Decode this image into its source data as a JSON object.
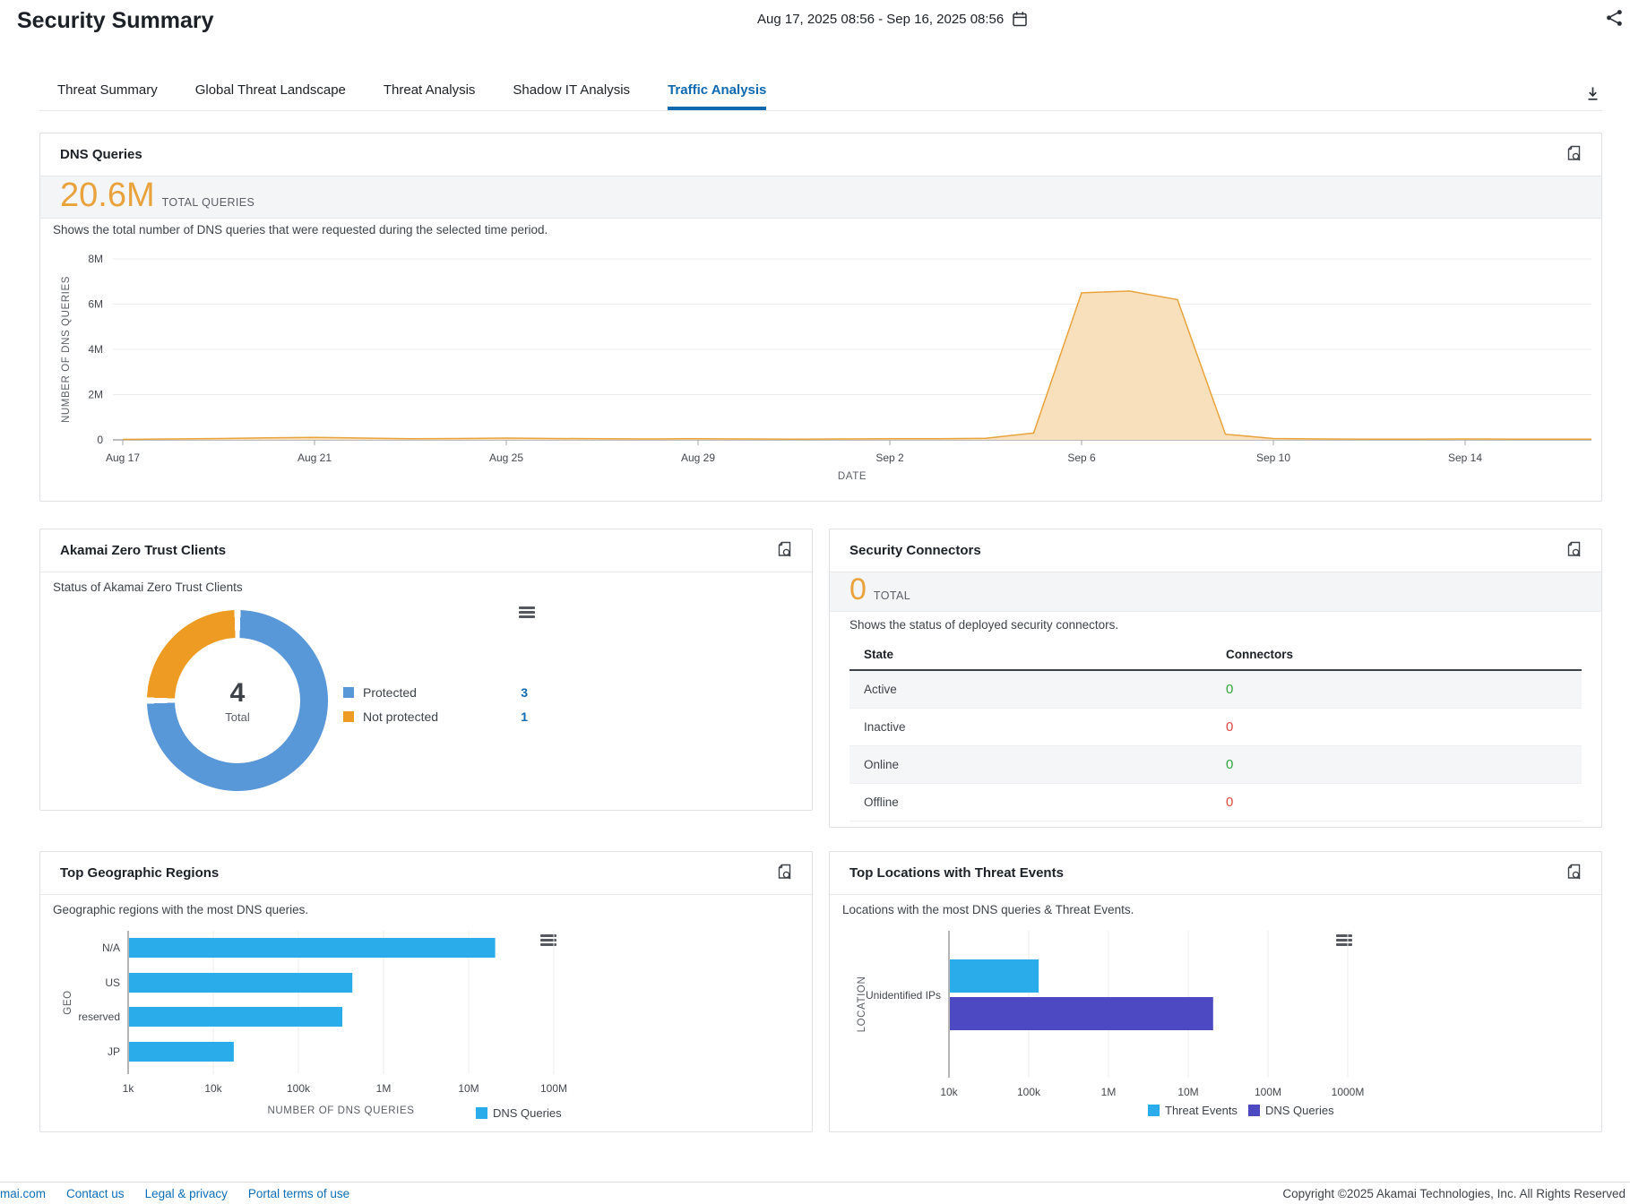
{
  "header": {
    "title": "Security Summary",
    "date_range": "Aug 17, 2025 08:56 - Sep 16, 2025 08:56"
  },
  "tabs": {
    "items": [
      {
        "label": "Threat Summary",
        "active": false
      },
      {
        "label": "Global Threat Landscape",
        "active": false
      },
      {
        "label": "Threat Analysis",
        "active": false
      },
      {
        "label": "Shadow IT Analysis",
        "active": false
      },
      {
        "label": "Traffic Analysis",
        "active": true
      }
    ]
  },
  "cards": {
    "dns": {
      "title": "DNS Queries",
      "total": "20.6M",
      "total_label": "TOTAL QUERIES",
      "description": "Shows the total number of DNS queries that were requested during the selected time period."
    },
    "ztc": {
      "title": "Akamai Zero Trust Clients",
      "subtitle": "Status of Akamai Zero Trust Clients",
      "center_value": "4",
      "center_label": "Total",
      "legend": [
        {
          "label": "Protected",
          "value": "3",
          "color": "donut_blue"
        },
        {
          "label": "Not protected",
          "value": "1",
          "color": "donut_orange"
        }
      ]
    },
    "connectors": {
      "title": "Security Connectors",
      "total": "0",
      "total_label": "TOTAL",
      "description": "Shows the status of deployed security connectors.",
      "table": {
        "columns": [
          "State",
          "Connectors"
        ],
        "rows": [
          {
            "state": "Active",
            "value": "0",
            "status": "good"
          },
          {
            "state": "Inactive",
            "value": "0",
            "status": "bad"
          },
          {
            "state": "Online",
            "value": "0",
            "status": "good"
          },
          {
            "state": "Offline",
            "value": "0",
            "status": "bad"
          }
        ]
      }
    },
    "geo": {
      "title": "Top Geographic Regions",
      "subtitle": "Geographic regions with the most DNS queries."
    },
    "locations": {
      "title": "Top Locations with Threat Events",
      "subtitle": "Locations with the most DNS queries & Threat Events."
    }
  },
  "footer": {
    "links": [
      "mai.com",
      "Contact us",
      "Legal & privacy",
      "Portal terms of use"
    ],
    "copyright": "Copyright ©2025 Akamai Technologies, Inc. All Rights Reserved"
  },
  "theme": {
    "accent_orange": "#e9a23c",
    "area_fill": "#f8e0bc",
    "area_line": "#e8a33d",
    "chart_blue": "#29ace9",
    "chart_indigo": "#4d49c2",
    "donut_blue": "#5897d8",
    "donut_orange": "#ee9b23",
    "good_green": "#2fa43c",
    "bad_red": "#d94843",
    "link_blue": "#0d6eb8",
    "tab_active_blue": "#0e69b1"
  },
  "chart_data": [
    {
      "id": "dns-queries-over-time",
      "type": "area",
      "title": "DNS Queries",
      "xlabel": "DATE",
      "ylabel": "NUMBER OF DNS QUERIES",
      "x_start": "Aug 17",
      "x_end": "Sep 16",
      "ylim_millions": [
        0,
        8
      ],
      "values_millions": [
        0.02,
        0.04,
        0.06,
        0.09,
        0.11,
        0.08,
        0.05,
        0.06,
        0.08,
        0.06,
        0.05,
        0.04,
        0.05,
        0.04,
        0.03,
        0.04,
        0.05,
        0.05,
        0.07,
        0.3,
        6.5,
        6.58,
        6.2,
        0.25,
        0.06,
        0.04,
        0.03,
        0.03,
        0.04,
        0.03,
        0.03
      ],
      "x_ticks": [
        {
          "day_index": 0,
          "label": "Aug 17"
        },
        {
          "day_index": 4,
          "label": "Aug 21"
        },
        {
          "day_index": 8,
          "label": "Aug 25"
        },
        {
          "day_index": 12,
          "label": "Aug 29"
        },
        {
          "day_index": 16,
          "label": "Sep 2"
        },
        {
          "day_index": 20,
          "label": "Sep 6"
        },
        {
          "day_index": 24,
          "label": "Sep 10"
        },
        {
          "day_index": 28,
          "label": "Sep 14"
        }
      ],
      "y_ticks": [
        {
          "value_millions": 0,
          "label": "0"
        },
        {
          "value_millions": 2,
          "label": "2M"
        },
        {
          "value_millions": 4,
          "label": "4M"
        },
        {
          "value_millions": 6,
          "label": "6M"
        },
        {
          "value_millions": 8,
          "label": "8M"
        }
      ],
      "fill_color": "#f8e0bc",
      "line_color": "#e8a33d",
      "grid": true,
      "legend_position": "none"
    },
    {
      "id": "zero-trust-clients-status",
      "type": "pie",
      "labels": [
        "Protected",
        "Not protected"
      ],
      "values": [
        3,
        1
      ],
      "total": 4,
      "colors": [
        "#5897d8",
        "#ee9b23"
      ],
      "center_label": "Total"
    },
    {
      "id": "security-connectors-status",
      "type": "table",
      "columns": [
        "State",
        "Connectors"
      ],
      "rows": [
        [
          "Active",
          0
        ],
        [
          "Inactive",
          0
        ],
        [
          "Online",
          0
        ],
        [
          "Offline",
          0
        ]
      ]
    },
    {
      "id": "top-geographic-regions",
      "type": "bar",
      "orientation": "horizontal",
      "log_scale": true,
      "categories": [
        "N/A",
        "US",
        "reserved",
        "JP"
      ],
      "values": [
        20000000,
        420000,
        320000,
        17000
      ],
      "xlabel": "NUMBER OF DNS QUERIES",
      "ylabel": "GEO",
      "x_ticks": [
        "1k",
        "10k",
        "100k",
        "1M",
        "10M",
        "100M"
      ],
      "x_min_exp": 3,
      "legend": [
        "DNS Queries"
      ],
      "legend_position": "bottom-right"
    },
    {
      "id": "top-locations-threat-events",
      "type": "bar",
      "orientation": "horizontal",
      "log_scale": true,
      "categories": [
        "Unidentified IPs"
      ],
      "series": [
        {
          "name": "Threat Events",
          "values": [
            130000
          ],
          "color": "#29ace9"
        },
        {
          "name": "DNS Queries",
          "values": [
            20000000
          ],
          "color": "#4d49c2"
        }
      ],
      "xlabel": "",
      "ylabel": "LOCATION",
      "x_ticks": [
        "10k",
        "100k",
        "1M",
        "10M",
        "100M",
        "1000M"
      ],
      "x_min_exp": 4,
      "legend_position": "bottom-right"
    }
  ]
}
